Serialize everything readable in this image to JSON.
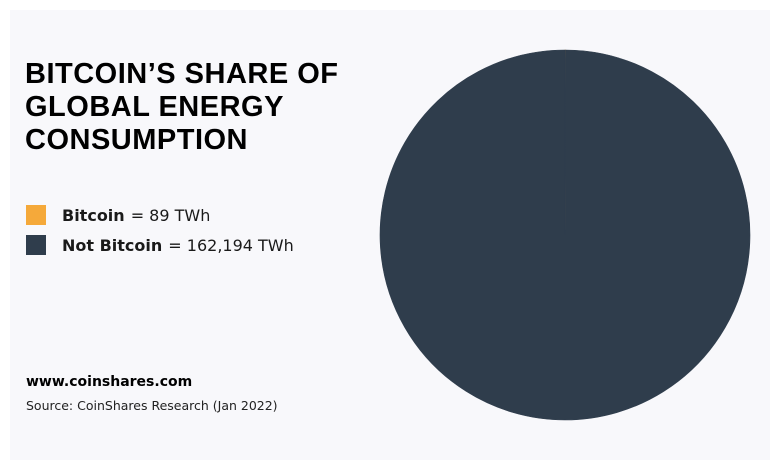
{
  "chart_data": {
    "type": "pie",
    "title": "BITCOIN’S SHARE OF GLOBAL ENERGY CONSUMPTION",
    "labels": [
      "Bitcoin",
      "Not Bitcoin"
    ],
    "values": [
      89,
      162194
    ],
    "value_labels": [
      "= 89 TWh",
      "= 162,194 TWh"
    ],
    "colors": [
      "#f5a93a",
      "#2f3d4c"
    ],
    "website": "www.coinshares.com",
    "source": "Source: CoinShares Research (Jan 2022)"
  }
}
